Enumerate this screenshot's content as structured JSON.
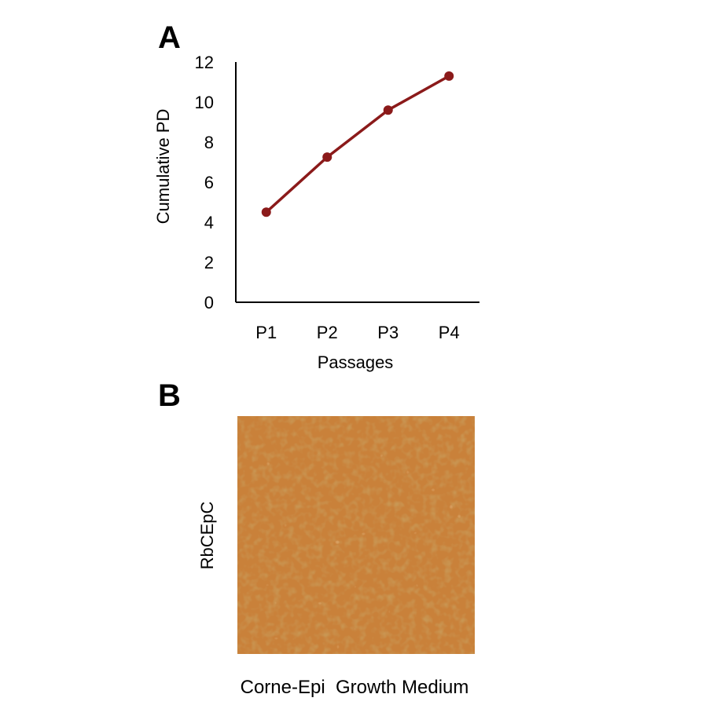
{
  "panels": {
    "a_label": "A",
    "b_label": "B"
  },
  "chart_data": {
    "type": "line",
    "categories": [
      "P1",
      "P2",
      "P3",
      "P4"
    ],
    "series": [
      {
        "values": [
          4.5,
          7.25,
          9.6,
          11.3
        ],
        "color": "#8b1a1a"
      }
    ],
    "title": "",
    "xlabel": "Passages",
    "ylabel": "Cumulative PD",
    "ylim": [
      0,
      12
    ],
    "yticks": [
      0,
      2,
      4,
      6,
      8,
      10,
      12
    ],
    "grid": false,
    "legend": false,
    "markers": true
  },
  "image_panel": {
    "ylabel": "RbCEpC",
    "caption": "Corne-Epi  Growth Medium",
    "base_color": "#c9813a"
  }
}
